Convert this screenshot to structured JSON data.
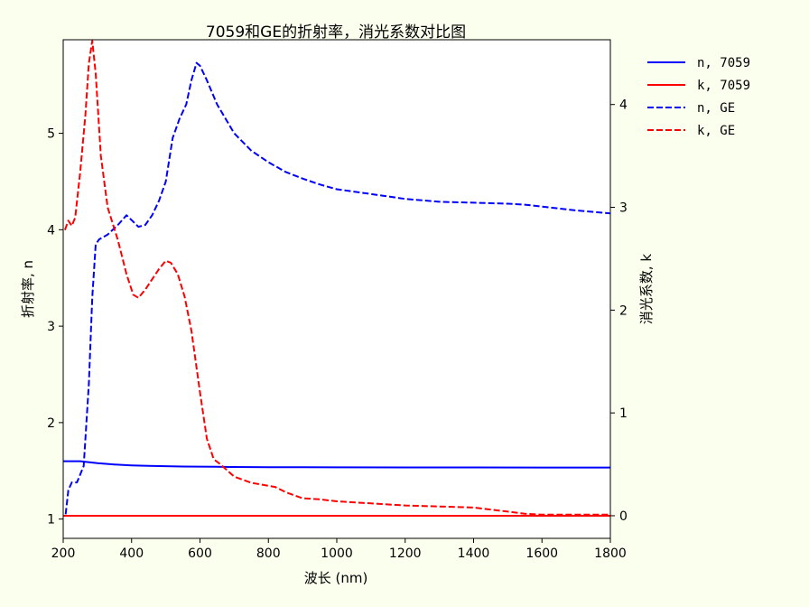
{
  "chart_data": {
    "type": "line",
    "title": "7059和GE的折射率，消光系数对比图",
    "xlabel": "波长 (nm)",
    "ylabel_left": "折射率, n",
    "ylabel_right": "消光系数, k",
    "xlim": [
      200,
      1800
    ],
    "ylim_left": [
      0.8,
      5.97
    ],
    "ylim_right": [
      -0.22,
      4.63
    ],
    "xticks": [
      200,
      400,
      600,
      800,
      1000,
      1200,
      1400,
      1600,
      1800
    ],
    "yticks_left": [
      1,
      2,
      3,
      4,
      5
    ],
    "yticks_right": [
      0,
      1,
      2,
      3,
      4
    ],
    "grid": false,
    "legend_position": "outside-top-right",
    "series": [
      {
        "name": "n, 7059",
        "axis": "left",
        "color": "#0000ff",
        "linestyle": "solid",
        "x": [
          200,
          250,
          300,
          350,
          400,
          450,
          500,
          550,
          600,
          650,
          700,
          800,
          900,
          1000,
          1200,
          1400,
          1600,
          1800
        ],
        "y": [
          1.6,
          1.6,
          1.58,
          1.565,
          1.557,
          1.552,
          1.548,
          1.545,
          1.544,
          1.542,
          1.54,
          1.538,
          1.537,
          1.536,
          1.535,
          1.535,
          1.534,
          1.534
        ]
      },
      {
        "name": "k, 7059",
        "axis": "right",
        "color": "#ff0000",
        "linestyle": "solid",
        "x": [
          200,
          400,
          600,
          800,
          1000,
          1200,
          1400,
          1600,
          1800
        ],
        "y": [
          0.0,
          0.0,
          0.0,
          0.0,
          0.0,
          0.0,
          0.0,
          0.0,
          0.0
        ]
      },
      {
        "name": "n, GE",
        "axis": "left",
        "color": "#0000ff",
        "linestyle": "dashed",
        "x": [
          207,
          215,
          225,
          240,
          260,
          275,
          285,
          295,
          305,
          330,
          360,
          385,
          400,
          420,
          440,
          460,
          480,
          500,
          520,
          540,
          560,
          575,
          590,
          600,
          620,
          650,
          700,
          750,
          800,
          850,
          900,
          950,
          1000,
          1100,
          1200,
          1300,
          1400,
          1500,
          1550,
          1600,
          1700,
          1800
        ],
        "y": [
          1.05,
          1.3,
          1.38,
          1.38,
          1.55,
          2.4,
          3.3,
          3.85,
          3.9,
          3.95,
          4.05,
          4.15,
          4.1,
          4.03,
          4.05,
          4.15,
          4.3,
          4.5,
          4.95,
          5.15,
          5.3,
          5.55,
          5.73,
          5.7,
          5.55,
          5.3,
          5.0,
          4.82,
          4.7,
          4.6,
          4.53,
          4.47,
          4.42,
          4.37,
          4.32,
          4.29,
          4.28,
          4.27,
          4.26,
          4.24,
          4.2,
          4.17
        ]
      },
      {
        "name": "k, GE",
        "axis": "right",
        "color": "#ff0000",
        "linestyle": "dashed",
        "x": [
          205,
          215,
          225,
          235,
          250,
          265,
          275,
          285,
          295,
          310,
          330,
          360,
          385,
          405,
          420,
          440,
          460,
          480,
          500,
          515,
          535,
          555,
          575,
          600,
          620,
          640,
          660,
          700,
          750,
          820,
          850,
          900,
          950,
          1000,
          1100,
          1200,
          1300,
          1400,
          1450,
          1500,
          1550,
          1600,
          1700,
          1800
        ],
        "y": [
          2.78,
          2.87,
          2.82,
          2.9,
          3.35,
          3.9,
          4.4,
          4.62,
          4.3,
          3.5,
          3.0,
          2.68,
          2.35,
          2.15,
          2.12,
          2.2,
          2.3,
          2.4,
          2.48,
          2.46,
          2.35,
          2.13,
          1.8,
          1.2,
          0.75,
          0.55,
          0.5,
          0.38,
          0.32,
          0.28,
          0.23,
          0.17,
          0.16,
          0.14,
          0.12,
          0.1,
          0.09,
          0.08,
          0.06,
          0.04,
          0.02,
          0.01,
          0.01,
          0.01
        ]
      }
    ]
  }
}
